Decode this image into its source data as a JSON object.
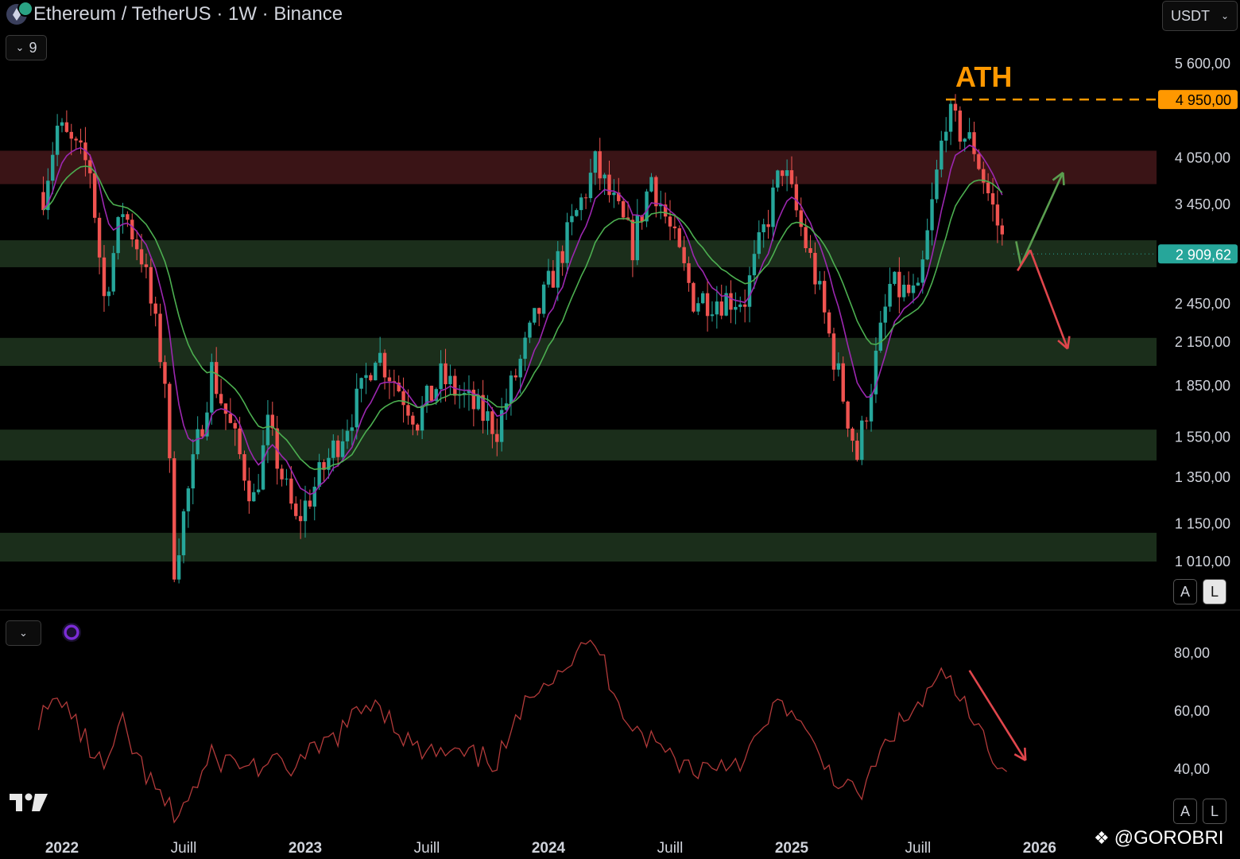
{
  "header": {
    "title": "Ethereum / TetherUS · 1W · Binance",
    "quote_currency": "USDT",
    "indicator_count": "9"
  },
  "scale_buttons": {
    "auto": "A",
    "log": "L"
  },
  "watermark": "@GOROBRI",
  "colors": {
    "up": "#26a69a",
    "down": "#ef5350",
    "ema_fast": "#9c27b0",
    "ema_slow": "#4caf50",
    "ath": "#ff9800",
    "rsi": "#b23a3a",
    "zone_green": "#1b2e1b",
    "zone_red": "#3a1416"
  },
  "chart_data": {
    "type": "candlestick",
    "price_axis": {
      "ticks": [
        "5 600,00",
        "4 950,00",
        "4 050,00",
        "3 450,00",
        "2 909,62",
        "2 450,00",
        "2 150,00",
        "1 850,00",
        "1 550,00",
        "1 350,00",
        "1 150,00",
        "1 010,00"
      ],
      "scale": "log"
    },
    "time_axis": {
      "ticks": [
        "2022",
        "Juill",
        "2023",
        "Juill",
        "2024",
        "Juill",
        "2025",
        "Juill",
        "2026"
      ]
    },
    "ath": {
      "label": "ATH",
      "value": 4950.0,
      "value_label": "4 950,00"
    },
    "last_price": {
      "value": 2909.62,
      "value_label": "2 909,62"
    },
    "zones": [
      {
        "kind": "resistance",
        "from": 3700,
        "to": 4150
      },
      {
        "kind": "support",
        "from": 2780,
        "to": 3050
      },
      {
        "kind": "support",
        "from": 1980,
        "to": 2180
      },
      {
        "kind": "support",
        "from": 1430,
        "to": 1590
      },
      {
        "kind": "support",
        "from": 1010,
        "to": 1115
      }
    ],
    "price_path": [
      {
        "date": "2021-12-06",
        "close": 3600
      },
      {
        "date": "2021-12-27",
        "close": 4500
      },
      {
        "date": "2022-02-14",
        "close": 3900
      },
      {
        "date": "2022-03-07",
        "close": 2500
      },
      {
        "date": "2022-04-04",
        "close": 3400
      },
      {
        "date": "2022-05-02",
        "close": 2900
      },
      {
        "date": "2022-06-06",
        "close": 1900
      },
      {
        "date": "2022-06-20",
        "close": 1000
      },
      {
        "date": "2022-08-15",
        "close": 1950
      },
      {
        "date": "2022-10-17",
        "close": 1250
      },
      {
        "date": "2022-11-07",
        "close": 1600
      },
      {
        "date": "2022-12-19",
        "close": 1150
      },
      {
        "date": "2023-03-27",
        "close": 1800
      },
      {
        "date": "2023-04-17",
        "close": 2100
      },
      {
        "date": "2023-06-19",
        "close": 1650
      },
      {
        "date": "2023-07-24",
        "close": 1900
      },
      {
        "date": "2023-10-16",
        "close": 1600
      },
      {
        "date": "2023-12-11",
        "close": 2300
      },
      {
        "date": "2024-03-11",
        "close": 3950
      },
      {
        "date": "2024-05-06",
        "close": 3000
      },
      {
        "date": "2024-06-03",
        "close": 3800
      },
      {
        "date": "2024-08-05",
        "close": 2500
      },
      {
        "date": "2024-10-21",
        "close": 2500
      },
      {
        "date": "2024-12-16",
        "close": 3950
      },
      {
        "date": "2025-02-03",
        "close": 2700
      },
      {
        "date": "2025-04-07",
        "close": 1450
      },
      {
        "date": "2025-05-26",
        "close": 2600
      },
      {
        "date": "2025-07-07",
        "close": 2500
      },
      {
        "date": "2025-08-18",
        "close": 4700
      },
      {
        "date": "2025-09-29",
        "close": 4200
      },
      {
        "date": "2025-11-17",
        "close": 2900
      }
    ],
    "rsi": {
      "axis_ticks": [
        "80,00",
        "60,00",
        "40,00"
      ],
      "path": [
        {
          "date": "2021-12-06",
          "value": 58
        },
        {
          "date": "2022-01-03",
          "value": 65
        },
        {
          "date": "2022-03-07",
          "value": 40
        },
        {
          "date": "2022-04-04",
          "value": 55
        },
        {
          "date": "2022-06-20",
          "value": 24
        },
        {
          "date": "2022-08-15",
          "value": 44
        },
        {
          "date": "2022-10-17",
          "value": 41
        },
        {
          "date": "2022-12-19",
          "value": 41
        },
        {
          "date": "2023-04-17",
          "value": 65
        },
        {
          "date": "2023-06-19",
          "value": 46
        },
        {
          "date": "2023-10-16",
          "value": 43
        },
        {
          "date": "2023-12-11",
          "value": 69
        },
        {
          "date": "2024-03-11",
          "value": 84
        },
        {
          "date": "2024-05-06",
          "value": 55
        },
        {
          "date": "2024-08-05",
          "value": 40
        },
        {
          "date": "2024-10-21",
          "value": 44
        },
        {
          "date": "2024-12-16",
          "value": 65
        },
        {
          "date": "2025-04-07",
          "value": 30
        },
        {
          "date": "2025-05-26",
          "value": 52
        },
        {
          "date": "2025-08-18",
          "value": 73
        },
        {
          "date": "2025-11-17",
          "value": 40
        }
      ]
    },
    "projections": [
      {
        "kind": "bullish",
        "from": {
          "date": "2025-12-08",
          "value": 2800
        },
        "to": {
          "date": "2026-02-09",
          "value": 3850
        }
      },
      {
        "kind": "bearish",
        "from": {
          "date": "2025-12-22",
          "value": 2950
        },
        "to": {
          "date": "2026-02-16",
          "value": 2100
        }
      }
    ],
    "rsi_projection": {
      "from": {
        "date": "2025-09-22",
        "value": 74
      },
      "to": {
        "date": "2025-12-15",
        "value": 43
      }
    }
  }
}
